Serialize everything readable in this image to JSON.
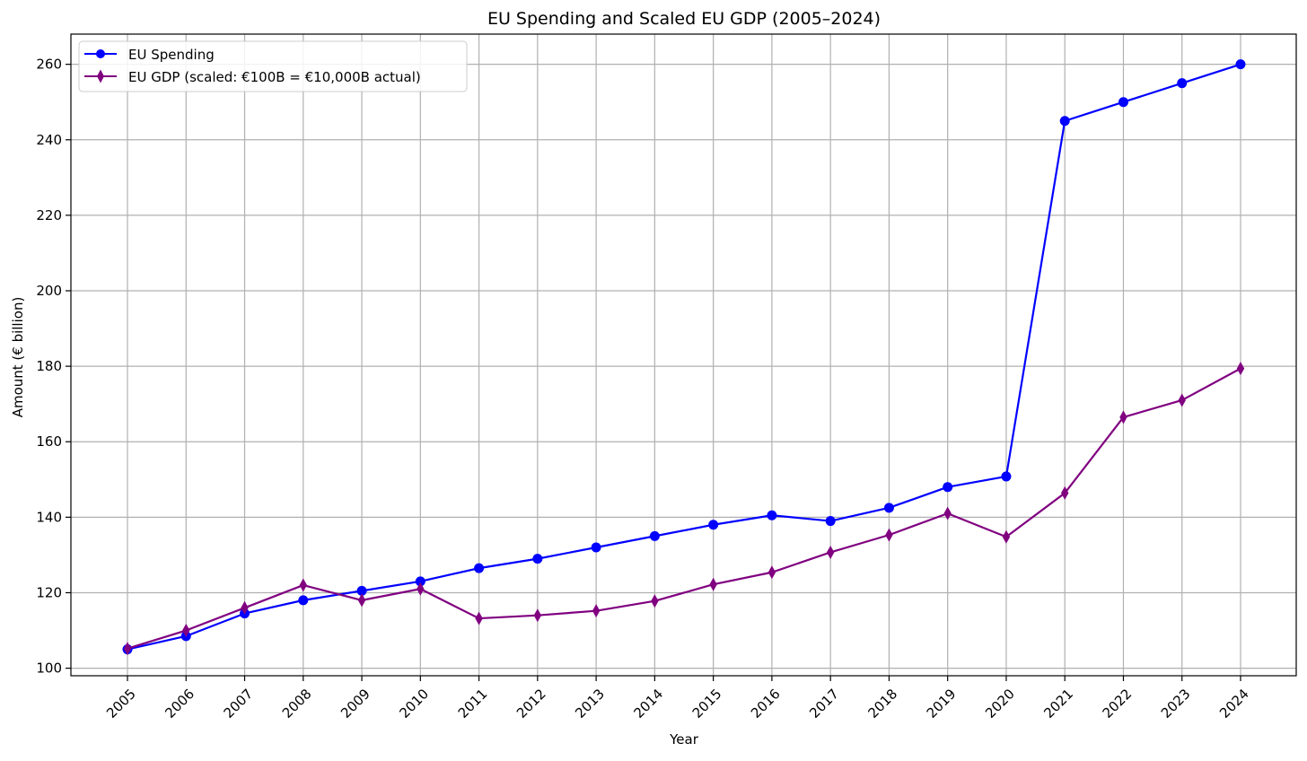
{
  "chart_data": {
    "type": "line",
    "title": "EU Spending and Scaled EU GDP (2005–2024)",
    "xlabel": "Year",
    "ylabel": "Amount (€ billion)",
    "x": [
      "2005",
      "2006",
      "2007",
      "2008",
      "2009",
      "2010",
      "2011",
      "2012",
      "2013",
      "2014",
      "2015",
      "2016",
      "2017",
      "2018",
      "2019",
      "2020",
      "2021",
      "2022",
      "2023",
      "2024"
    ],
    "ylim": [
      98,
      268
    ],
    "yticks": [
      100,
      120,
      140,
      160,
      180,
      200,
      220,
      240,
      260
    ],
    "grid": true,
    "legend_position": "top-left",
    "series": [
      {
        "name": "EU Spending",
        "color": "#0000ff",
        "marker": "circle",
        "values": [
          105.0,
          108.5,
          114.5,
          118.0,
          120.5,
          123.0,
          126.5,
          129.0,
          132.0,
          135.0,
          138.0,
          140.5,
          139.0,
          142.5,
          148.0,
          150.8,
          245.0,
          250.0,
          255.0,
          260.0
        ]
      },
      {
        "name": "EU GDP (scaled: €100B = €10,000B actual)",
        "color": "#800080",
        "marker": "thin_diamond",
        "values": [
          105.2,
          110.0,
          116.0,
          122.0,
          118.0,
          121.0,
          113.2,
          114.0,
          115.2,
          117.8,
          122.2,
          125.4,
          130.7,
          135.3,
          141.0,
          134.8,
          146.4,
          166.5,
          171.0,
          179.4
        ]
      }
    ]
  }
}
